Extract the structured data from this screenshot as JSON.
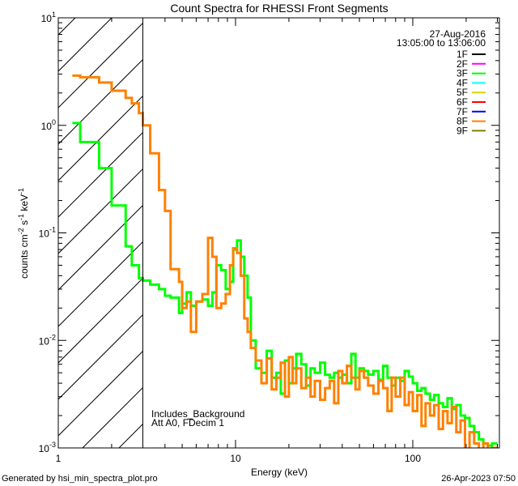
{
  "chart_data": {
    "type": "line",
    "title": "Count Spectra for RHESSI Front Segments",
    "xlabel": "Energy (keV)",
    "ylabel": "counts cm^-2 s^-1 keV^-1",
    "ylabel_parts": {
      "base": "counts cm",
      "e1": "-2",
      "s": " s",
      "e2": "-1",
      "k": " keV",
      "e3": "-1"
    },
    "xscale": "log",
    "yscale": "log",
    "xlim": [
      1,
      308
    ],
    "ylim": [
      0.001,
      10
    ],
    "x_ticks": [
      {
        "value": 1,
        "label": "1"
      },
      {
        "value": 10,
        "label": "10"
      },
      {
        "value": 100,
        "label": "100"
      }
    ],
    "y_ticks": [
      {
        "value": 10,
        "base": "10",
        "exp": "1"
      },
      {
        "value": 1,
        "base": "10",
        "exp": "0"
      },
      {
        "value": 0.1,
        "base": "10",
        "exp": "-1"
      },
      {
        "value": 0.01,
        "base": "10",
        "exp": "-2"
      },
      {
        "value": 0.001,
        "base": "10",
        "exp": "-3"
      }
    ],
    "excluded_region_keV": [
      1,
      3.0
    ],
    "legend_header": {
      "date": "27-Aug-2016",
      "time_range": "13:05:00 to 13:06:00"
    },
    "legend_position": "top-right",
    "legend": [
      {
        "label": "1F",
        "color": "#000000"
      },
      {
        "label": "2F",
        "color": "#ff00ff"
      },
      {
        "label": "3F",
        "color": "#00ff00"
      },
      {
        "label": "4F",
        "color": "#00ffff"
      },
      {
        "label": "5F",
        "color": "#d4d400"
      },
      {
        "label": "6F",
        "color": "#ff0000"
      },
      {
        "label": "7F",
        "color": "#0000ff"
      },
      {
        "label": "8F",
        "color": "#ff8000"
      },
      {
        "label": "9F",
        "color": "#808000"
      }
    ],
    "annotations": [
      "Includes_Background",
      "Att A0, FDecim 1"
    ],
    "bin_edges_keV": [
      1.2,
      1.33,
      1.7,
      2.0,
      2.4,
      2.6,
      2.85,
      3.0,
      3.3,
      3.7,
      4.0,
      4.3,
      4.8,
      5.0,
      5.3,
      5.6,
      6.0,
      6.5,
      7.0,
      7.4,
      7.8,
      8.3,
      8.8,
      9.3,
      9.7,
      10.2,
      10.7,
      11.2,
      11.7,
      12.2,
      13,
      14,
      15,
      16,
      17,
      18,
      19,
      20,
      21,
      22,
      23.5,
      25,
      26.5,
      28,
      30,
      32,
      34,
      36,
      38,
      40,
      42.5,
      45,
      47.5,
      50,
      53,
      56,
      60,
      64,
      68,
      72,
      76,
      80,
      85,
      90,
      95,
      100,
      106,
      112,
      118,
      125,
      132,
      140,
      148,
      157,
      166,
      176,
      186,
      197,
      209,
      222,
      236,
      250,
      265,
      280,
      300
    ],
    "series": [
      {
        "name": "3F",
        "color": "#00ff00",
        "values": [
          1.05,
          0.7,
          0.4,
          0.18,
          0.075,
          0.05,
          0.038,
          0.036,
          0.033,
          0.03,
          0.026,
          0.025,
          0.018,
          0.022,
          0.028,
          0.021,
          0.023,
          0.024,
          0.021,
          0.028,
          0.05,
          0.045,
          0.03,
          0.035,
          0.07,
          0.085,
          0.06,
          0.04,
          0.025,
          0.01,
          0.0055,
          0.005,
          0.008,
          0.0045,
          0.005,
          0.0032,
          0.0065,
          0.004,
          0.0055,
          0.0075,
          0.006,
          0.0038,
          0.0055,
          0.005,
          0.0062,
          0.0048,
          0.0045,
          0.005,
          0.0045,
          0.0048,
          0.004,
          0.0075,
          0.0045,
          0.0055,
          0.0052,
          0.0048,
          0.0052,
          0.0043,
          0.0058,
          0.0045,
          0.0038,
          0.0045,
          0.0042,
          0.0052,
          0.0046,
          0.004,
          0.0034,
          0.0036,
          0.0032,
          0.0028,
          0.0031,
          0.0026,
          0.0024,
          0.0029,
          0.0023,
          0.0025,
          0.002,
          0.0019,
          0.0016,
          0.0014,
          0.0012,
          0.0011,
          0.00105,
          0.0011
        ]
      },
      {
        "name": "8F",
        "color": "#ff8000",
        "values": [
          2.9,
          2.8,
          2.5,
          2.1,
          1.8,
          1.6,
          1.3,
          1.0,
          0.55,
          0.25,
          0.16,
          0.046,
          0.035,
          0.02,
          0.023,
          0.012,
          0.023,
          0.027,
          0.09,
          0.06,
          0.02,
          0.022,
          0.027,
          0.05,
          0.072,
          0.065,
          0.04,
          0.016,
          0.012,
          0.0085,
          0.0065,
          0.004,
          0.0068,
          0.0035,
          0.0045,
          0.0062,
          0.003,
          0.007,
          0.004,
          0.0055,
          0.0036,
          0.0045,
          0.003,
          0.0042,
          0.0028,
          0.0036,
          0.0042,
          0.0026,
          0.0052,
          0.004,
          0.0058,
          0.0045,
          0.0035,
          0.0052,
          0.0045,
          0.0038,
          0.0032,
          0.0042,
          0.0036,
          0.0022,
          0.0045,
          0.003,
          0.0045,
          0.0025,
          0.0033,
          0.0022,
          0.0031,
          0.0016,
          0.0026,
          0.002,
          0.0025,
          0.0015,
          0.0022,
          0.0017,
          0.0024,
          0.0014,
          0.0018,
          0.0009,
          0.0014,
          0.0011,
          0.0009,
          0.0011,
          0.0009,
          0.001
        ]
      }
    ]
  },
  "footer": {
    "generated_by": "Generated by hsi_min_spectra_plot.pro",
    "timestamp": "26-Apr-2023 07:50"
  }
}
